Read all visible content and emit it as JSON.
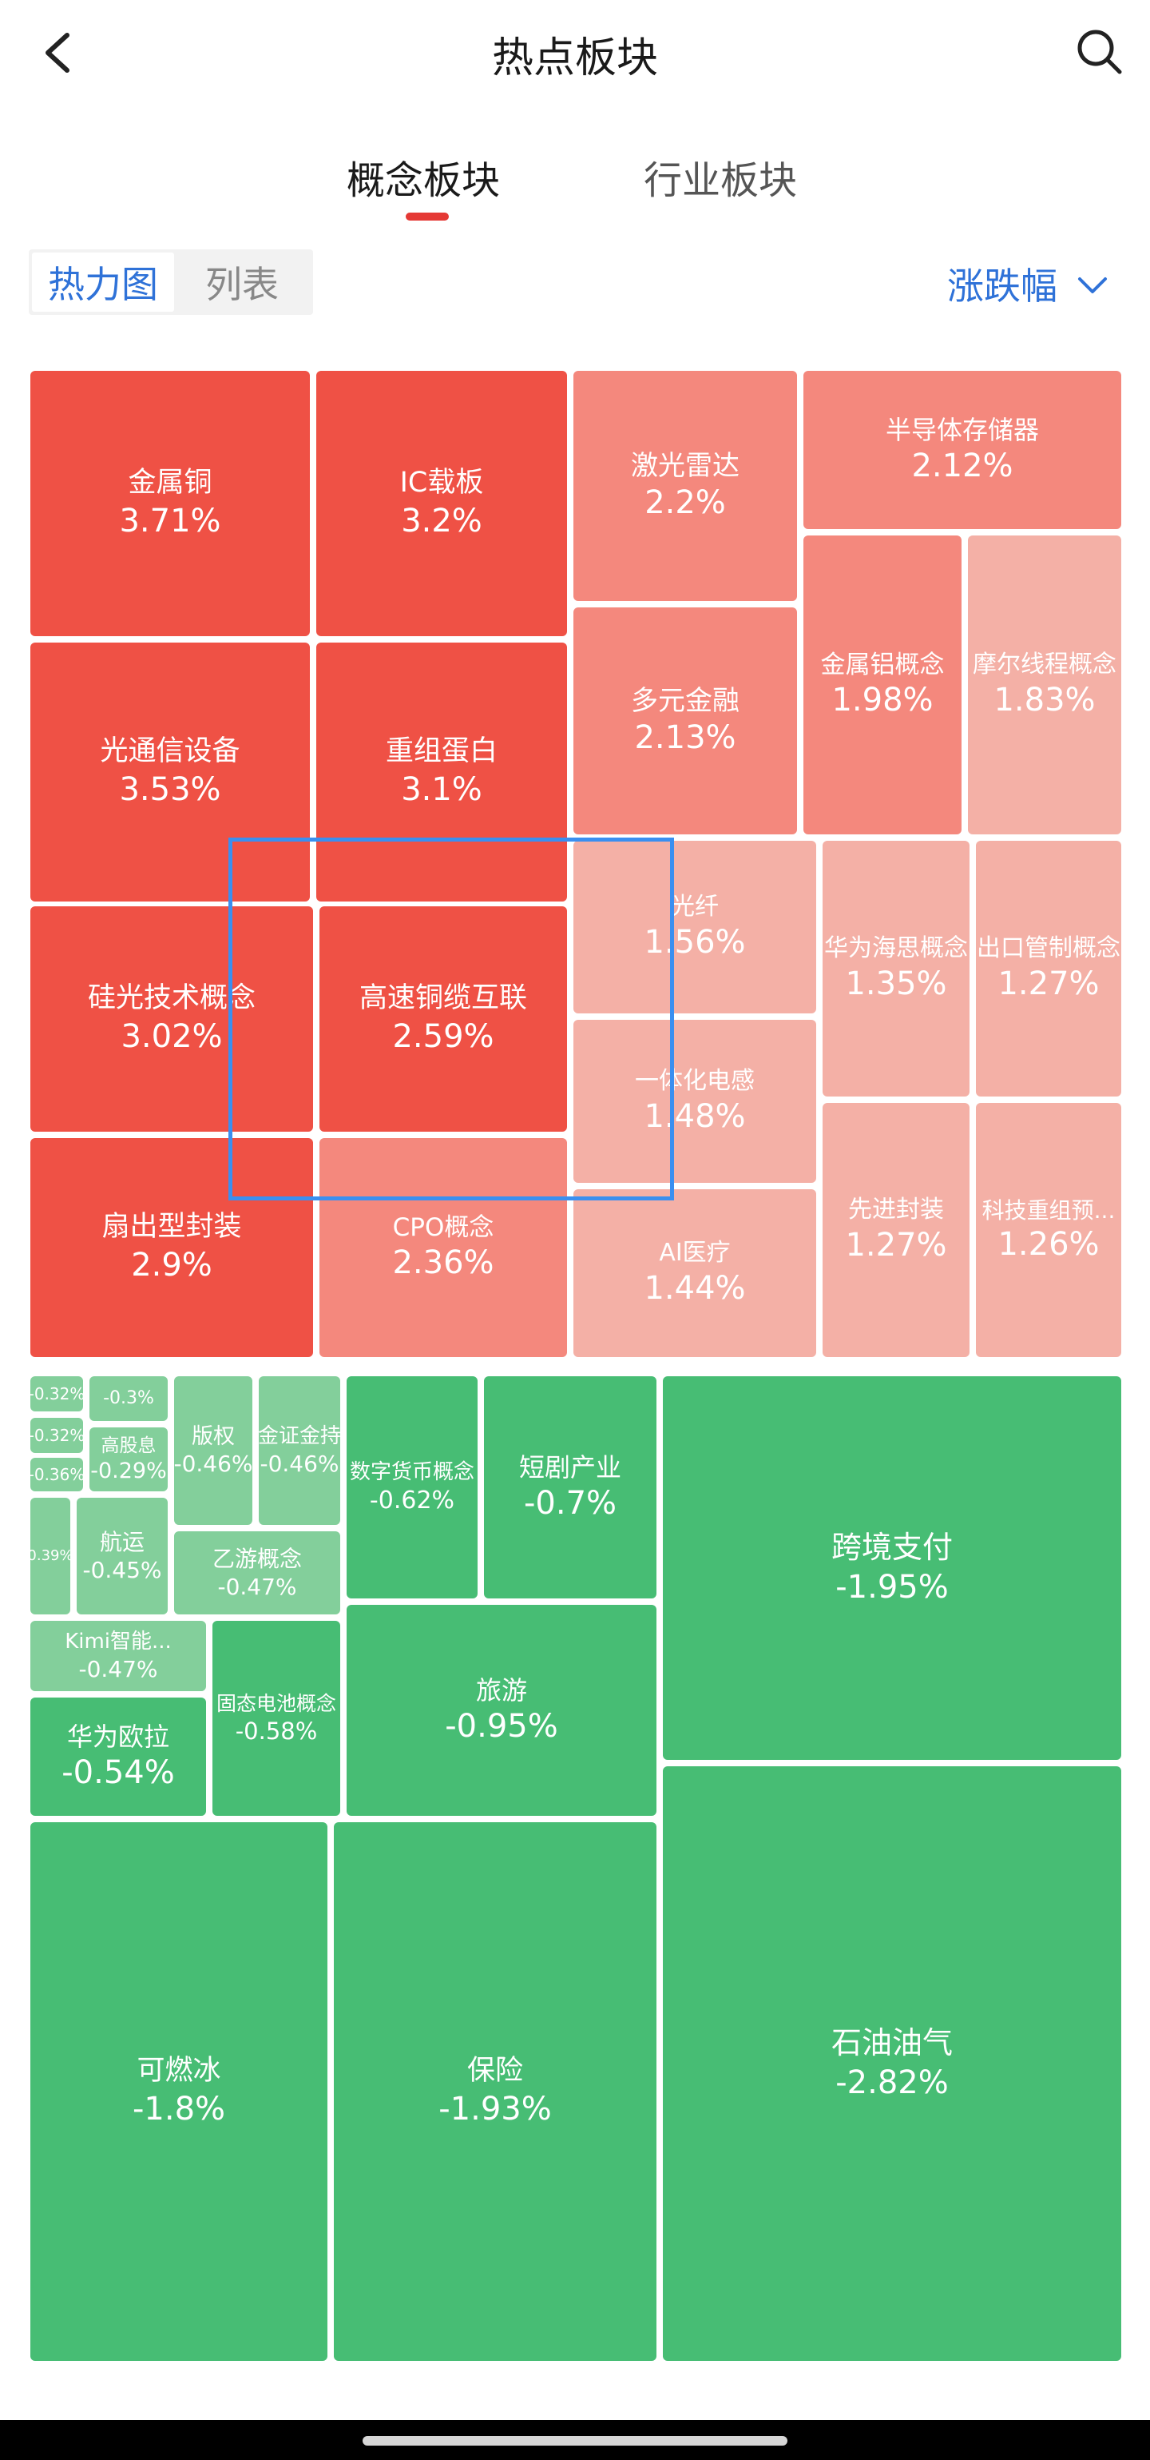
{
  "header": {
    "title": "热点板块",
    "back_icon": "chevron-left-icon",
    "search_icon": "search-icon"
  },
  "tabs": [
    {
      "label": "概念板块",
      "active": true
    },
    {
      "label": "行业板块",
      "active": false
    }
  ],
  "view_toggle": {
    "heatmap": "热力图",
    "list": "列表",
    "selected": "热力图"
  },
  "sort": {
    "label": "涨跌幅",
    "icon": "chevron-down-icon"
  },
  "colors": {
    "accent_blue": "#2f72d8",
    "tab_indicator": "#e53935",
    "up_strong": "#ef5145",
    "up_mid": "#f4887d",
    "up_weak": "#f4b0a6",
    "down_strong": "#47bd74",
    "down_weak": "#83cf9b"
  },
  "tiles": [
    {
      "name": "金属铜",
      "change": "3.71%"
    },
    {
      "name": "IC载板",
      "change": "3.2%"
    },
    {
      "name": "激光雷达",
      "change": "2.2%"
    },
    {
      "name": "半导体存储器",
      "change": "2.12%"
    },
    {
      "name": "光通信设备",
      "change": "3.53%"
    },
    {
      "name": "重组蛋白",
      "change": "3.1%"
    },
    {
      "name": "多元金融",
      "change": "2.13%"
    },
    {
      "name": "金属铝概念",
      "change": "1.98%"
    },
    {
      "name": "摩尔线程概念",
      "change": "1.83%"
    },
    {
      "name": "硅光技术概念",
      "change": "3.02%"
    },
    {
      "name": "高速铜缆互联",
      "change": "2.59%"
    },
    {
      "name": "光纤",
      "change": "1.56%"
    },
    {
      "name": "华为海思概念",
      "change": "1.35%"
    },
    {
      "name": "出口管制概念",
      "change": "1.27%"
    },
    {
      "name": "一体化电感",
      "change": "1.48%"
    },
    {
      "name": "扇出型封装",
      "change": "2.9%"
    },
    {
      "name": "CPO概念",
      "change": "2.36%"
    },
    {
      "name": "AI医疗",
      "change": "1.44%"
    },
    {
      "name": "先进封装",
      "change": "1.27%"
    },
    {
      "name": "科技重组预...",
      "change": "1.26%"
    },
    {
      "name": "",
      "change": "-0.32%"
    },
    {
      "name": "",
      "change": "-0.3%"
    },
    {
      "name": "",
      "change": "-0.32%"
    },
    {
      "name": "",
      "change": "-0.36%"
    },
    {
      "name": "高股息",
      "change": "-0.29%"
    },
    {
      "name": "版权",
      "change": "-0.46%"
    },
    {
      "name": "金证金持",
      "change": "-0.46%"
    },
    {
      "name": "数字货币概念",
      "change": "-0.62%"
    },
    {
      "name": "短剧产业",
      "change": "-0.7%"
    },
    {
      "name": "跨境支付",
      "change": "-1.95%"
    },
    {
      "name": "",
      "change": "0.39%"
    },
    {
      "name": "航运",
      "change": "-0.45%"
    },
    {
      "name": "乙游概念",
      "change": "-0.47%"
    },
    {
      "name": "Kimi智能...",
      "change": "-0.47%"
    },
    {
      "name": "固态电池概念",
      "change": "-0.58%"
    },
    {
      "name": "旅游",
      "change": "-0.95%"
    },
    {
      "name": "华为欧拉",
      "change": "-0.54%"
    },
    {
      "name": "可燃冰",
      "change": "-1.8%"
    },
    {
      "name": "保险",
      "change": "-1.93%"
    },
    {
      "name": "石油油气",
      "change": "-2.82%"
    }
  ]
}
